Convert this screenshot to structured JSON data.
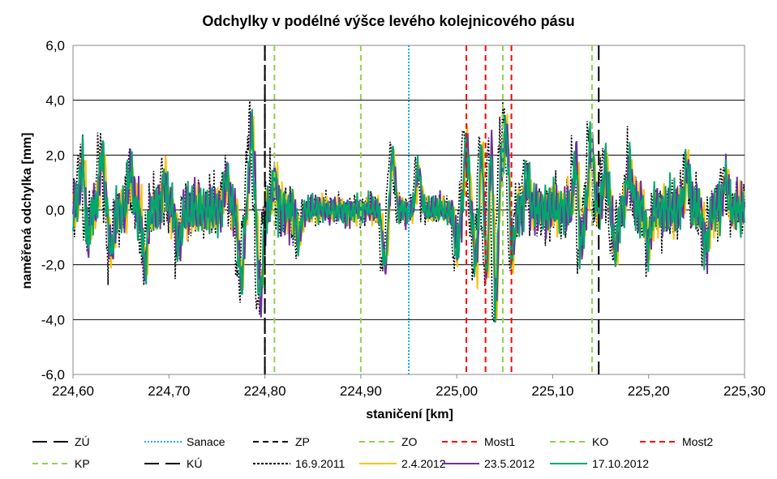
{
  "chart_data": {
    "type": "line",
    "title": "Odchylky v podélné výšce levého kolejnicového pásu",
    "xlabel": "staničení [km]",
    "ylabel": "naměřená odchylka [mm]",
    "xlim": [
      224.6,
      225.3
    ],
    "ylim": [
      -6.0,
      6.0
    ],
    "x_ticks": [
      "224,60",
      "224,70",
      "224,80",
      "224,90",
      "225,00",
      "225,10",
      "225,20",
      "225,30"
    ],
    "y_ticks": [
      "6,0",
      "4,0",
      "2,0",
      "0,0",
      "-2,0",
      "-4,0",
      "-6,0"
    ],
    "grid": "horizontal",
    "legend_position": "bottom",
    "markers": [
      {
        "name": "ZÚ",
        "x": 224.8,
        "color": "#000000",
        "style": "longdash"
      },
      {
        "name": "Sanace",
        "x": 224.95,
        "color": "#00B0F0",
        "style": "dot"
      },
      {
        "name": "ZP",
        "x": 224.8,
        "color": "#000000",
        "style": "dash"
      },
      {
        "name": "ZO",
        "x": 224.81,
        "color": "#92D050",
        "style": "dash"
      },
      {
        "name": "Most1",
        "x": 225.01,
        "color": "#FF0000",
        "style": "dash"
      },
      {
        "name": "KO",
        "x": 224.9,
        "color": "#92D050",
        "style": "dash"
      },
      {
        "name": "Most2",
        "x": 225.03,
        "color": "#FF0000",
        "style": "dash"
      },
      {
        "name": "KP",
        "x": 225.048,
        "color": "#92D050",
        "style": "dash"
      },
      {
        "name": "KÚ",
        "x": 225.148,
        "color": "#000000",
        "style": "longdash"
      }
    ],
    "extra_lines": [
      {
        "x": 225.057,
        "color": "#FF0000",
        "style": "dash"
      },
      {
        "x": 225.141,
        "color": "#92D050",
        "style": "dash"
      }
    ],
    "series": [
      {
        "name": "16.9.2011",
        "color": "#000000",
        "style": "dot",
        "shift": -0.0025,
        "scale": 1.12,
        "seed": 11
      },
      {
        "name": "2.4.2012",
        "color": "#FFC000",
        "style": "solid",
        "shift": 0.0012,
        "scale": 0.95,
        "seed": 23
      },
      {
        "name": "23.5.2012",
        "color": "#7030A0",
        "style": "solid",
        "shift": 0.0004,
        "scale": 0.98,
        "seed": 37
      },
      {
        "name": "17.10.2012",
        "color": "#00A86B",
        "style": "solid",
        "shift": 0.0,
        "scale": 1.0,
        "seed": 51
      }
    ],
    "features": [
      [
        224.61,
        1.9
      ],
      [
        224.615,
        -1.2
      ],
      [
        224.63,
        2.1
      ],
      [
        224.64,
        -1.6
      ],
      [
        224.66,
        1.4
      ],
      [
        224.675,
        -1.9
      ],
      [
        224.695,
        1.1
      ],
      [
        224.71,
        -1.3
      ],
      [
        224.76,
        1.2
      ],
      [
        224.775,
        -2.6
      ],
      [
        224.786,
        2.9
      ],
      [
        224.795,
        -3.3
      ],
      [
        224.81,
        1.1
      ],
      [
        224.835,
        -1.0
      ],
      [
        224.925,
        -2.0
      ],
      [
        224.933,
        2.0
      ],
      [
        224.96,
        1.5
      ],
      [
        225.0,
        -1.5
      ],
      [
        225.01,
        2.5
      ],
      [
        225.02,
        -2.0
      ],
      [
        225.026,
        2.5
      ],
      [
        225.031,
        -3.2
      ],
      [
        225.036,
        3.8
      ],
      [
        225.04,
        -4.4
      ],
      [
        225.046,
        1.8
      ],
      [
        225.052,
        3.0
      ],
      [
        225.057,
        -1.9
      ],
      [
        225.073,
        1.2
      ],
      [
        225.125,
        2.6
      ],
      [
        225.128,
        -2.2
      ],
      [
        225.14,
        2.5
      ],
      [
        225.155,
        1.7
      ],
      [
        225.165,
        -1.5
      ],
      [
        225.18,
        1.5
      ],
      [
        225.2,
        -1.2
      ],
      [
        225.24,
        1.5
      ],
      [
        225.26,
        -1.3
      ],
      [
        225.28,
        1.2
      ]
    ]
  },
  "legend_rows": [
    [
      {
        "label": "ZÚ",
        "color": "#000000",
        "dash": "18,8"
      },
      {
        "label": "Sanace",
        "color": "#00B0F0",
        "dash": "2,2"
      },
      {
        "label": "ZP",
        "color": "#000000",
        "dash": "7,5"
      },
      {
        "label": "ZO",
        "color": "#92D050",
        "dash": "7,5"
      },
      {
        "label": "Most1",
        "color": "#FF0000",
        "dash": "7,5"
      },
      {
        "label": "KO",
        "color": "#92D050",
        "dash": "7,5"
      },
      {
        "label": "Most2",
        "color": "#FF0000",
        "dash": "7,5"
      }
    ],
    [
      {
        "label": "KP",
        "color": "#92D050",
        "dash": "7,5"
      },
      {
        "label": "KÚ",
        "color": "#000000",
        "dash": "18,8"
      },
      {
        "label": "16.9.2011",
        "color": "#000000",
        "dash": "3,2"
      },
      {
        "label": "2.4.2012",
        "color": "#FFC000",
        "dash": ""
      },
      {
        "label": "23.5.2012",
        "color": "#7030A0",
        "dash": ""
      },
      {
        "label": "17.10.2012",
        "color": "#00A86B",
        "dash": ""
      }
    ]
  ]
}
